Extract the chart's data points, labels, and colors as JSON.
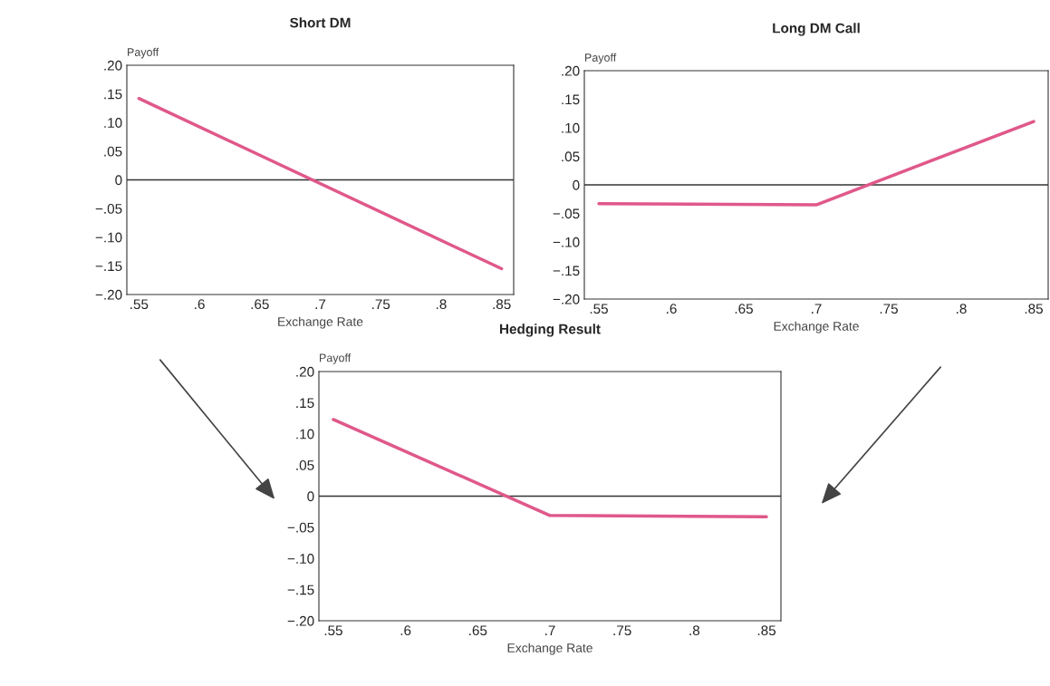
{
  "chart_data": [
    {
      "type": "line",
      "title": "Short DM",
      "xlabel": "Exchange Rate",
      "ylabel": "Payoff",
      "grid": false,
      "x": [
        0.55,
        0.85
      ],
      "series": [
        {
          "color": "#e0588a",
          "values": [
            0.142,
            -0.155
          ]
        }
      ],
      "xlim": [
        0.54,
        0.86
      ],
      "ylim": [
        -0.2,
        0.2
      ],
      "xticks": [
        {
          "value": 0.55,
          "label": ".55"
        },
        {
          "value": 0.6,
          "label": ".6"
        },
        {
          "value": 0.65,
          "label": ".65"
        },
        {
          "value": 0.7,
          "label": ".7"
        },
        {
          "value": 0.75,
          "label": ".75"
        },
        {
          "value": 0.8,
          "label": ".8"
        },
        {
          "value": 0.85,
          "label": ".85"
        }
      ],
      "yticks": [
        {
          "value": 0.2,
          "label": ".20"
        },
        {
          "value": 0.15,
          "label": ".15"
        },
        {
          "value": 0.1,
          "label": ".10"
        },
        {
          "value": 0.05,
          "label": ".05"
        },
        0,
        {
          "value": -0.05,
          "label": "−.05"
        },
        {
          "value": -0.1,
          "label": "−.10"
        },
        {
          "value": -0.15,
          "label": "−.15"
        },
        {
          "value": -0.2,
          "label": "−.20"
        }
      ],
      "ref_lines": [
        {
          "axis": "y",
          "value": 0,
          "color": "#333333"
        }
      ]
    },
    {
      "type": "line",
      "title": "Long DM Call",
      "xlabel": "Exchange Rate",
      "ylabel": "Payoff",
      "grid": false,
      "x": [
        0.55,
        0.7,
        0.85
      ],
      "series": [
        {
          "color": "#e0588a",
          "values": [
            -0.033,
            -0.035,
            0.111
          ]
        }
      ],
      "xlim": [
        0.54,
        0.86
      ],
      "ylim": [
        -0.2,
        0.2
      ],
      "xticks": [
        {
          "value": 0.55,
          "label": ".55"
        },
        {
          "value": 0.6,
          "label": ".6"
        },
        {
          "value": 0.65,
          "label": ".65"
        },
        {
          "value": 0.7,
          "label": ".7"
        },
        {
          "value": 0.75,
          "label": ".75"
        },
        {
          "value": 0.8,
          "label": ".8"
        },
        {
          "value": 0.85,
          "label": ".85"
        }
      ],
      "yticks": [
        {
          "value": 0.2,
          "label": ".20"
        },
        {
          "value": 0.15,
          "label": ".15"
        },
        {
          "value": 0.1,
          "label": ".10"
        },
        {
          "value": 0.05,
          "label": ".05"
        },
        0,
        {
          "value": -0.05,
          "label": "−.05"
        },
        {
          "value": -0.1,
          "label": "−.10"
        },
        {
          "value": -0.15,
          "label": "−.15"
        },
        {
          "value": -0.2,
          "label": "−.20"
        }
      ],
      "ref_lines": [
        {
          "axis": "y",
          "value": 0,
          "color": "#333333"
        }
      ]
    },
    {
      "type": "line",
      "title": "Hedging Result",
      "xlabel": "Exchange Rate",
      "ylabel": "Payoff",
      "grid": false,
      "x": [
        0.55,
        0.7,
        0.85
      ],
      "series": [
        {
          "color": "#e0588a",
          "values": [
            0.123,
            -0.031,
            -0.033
          ]
        }
      ],
      "xlim": [
        0.54,
        0.86
      ],
      "ylim": [
        -0.2,
        0.2
      ],
      "xticks": [
        {
          "value": 0.55,
          "label": ".55"
        },
        {
          "value": 0.6,
          "label": ".6"
        },
        {
          "value": 0.65,
          "label": ".65"
        },
        {
          "value": 0.7,
          "label": ".7"
        },
        {
          "value": 0.75,
          "label": ".75"
        },
        {
          "value": 0.8,
          "label": ".8"
        },
        {
          "value": 0.85,
          "label": ".85"
        }
      ],
      "yticks": [
        {
          "value": 0.2,
          "label": ".20"
        },
        {
          "value": 0.15,
          "label": ".15"
        },
        {
          "value": 0.1,
          "label": ".10"
        },
        {
          "value": 0.05,
          "label": ".05"
        },
        0,
        {
          "value": -0.05,
          "label": "−.05"
        },
        {
          "value": -0.1,
          "label": "−.10"
        },
        {
          "value": -0.15,
          "label": "−.15"
        },
        {
          "value": -0.2,
          "label": "−.20"
        }
      ],
      "ref_lines": [
        {
          "axis": "y",
          "value": 0,
          "color": "#333333"
        }
      ]
    }
  ]
}
